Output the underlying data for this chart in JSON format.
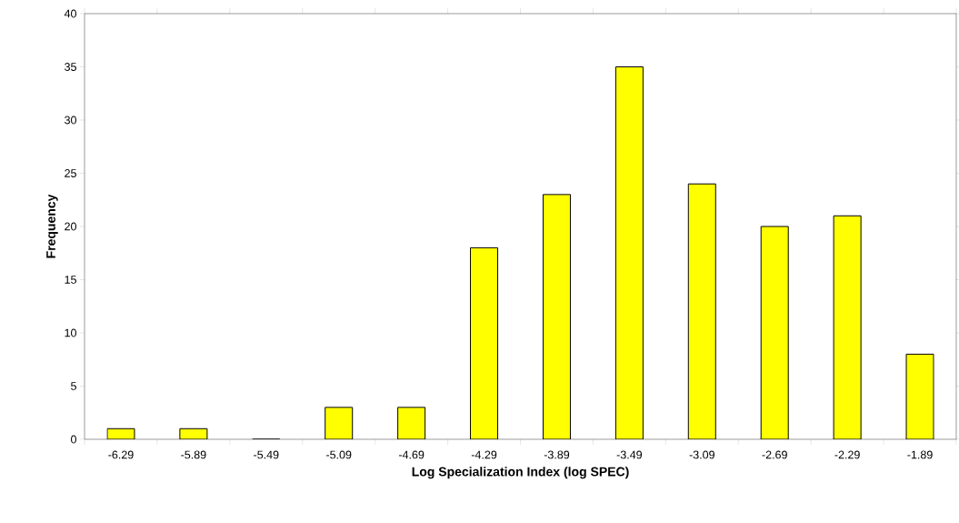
{
  "chart_data": {
    "type": "bar",
    "xlabel": "Log Specialization Index (log SPEC)",
    "ylabel": "Frequency",
    "categories": [
      "-6.29",
      "-5.89",
      "-5.49",
      "-5.09",
      "-4.69",
      "-4.29",
      "-3.89",
      "-3.49",
      "-3.09",
      "-2.69",
      "-2.29",
      "-1.89"
    ],
    "values": [
      1,
      1,
      0,
      3,
      3,
      18,
      23,
      35,
      24,
      20,
      21,
      8
    ],
    "color": "#ffff00",
    "ylim": [
      0,
      40
    ],
    "yticks": [
      0,
      5,
      10,
      15,
      20,
      25,
      30,
      35,
      40
    ]
  }
}
